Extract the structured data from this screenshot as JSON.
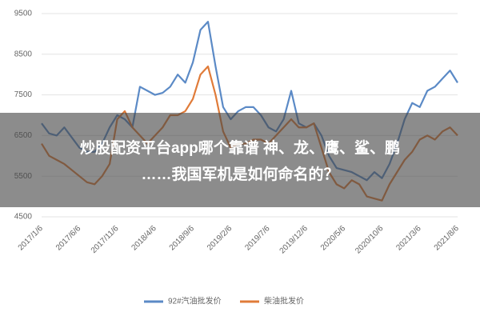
{
  "chart_data": {
    "type": "line",
    "annotations": [
      "炒股配资平台app哪个靠谱 神、龙、鹰、鲨、鹏",
      "……我国军机是如何命名的？"
    ],
    "categories": [
      "2017/1/6",
      null,
      null,
      null,
      null,
      "2017/6/6",
      null,
      null,
      null,
      null,
      "2017/11/6",
      null,
      null,
      null,
      null,
      "2018/4/6",
      null,
      null,
      null,
      null,
      "2018/9/6",
      null,
      null,
      null,
      null,
      "2019/2/6",
      null,
      null,
      null,
      null,
      "2019/7/6",
      null,
      null,
      null,
      null,
      "2019/12/6",
      null,
      null,
      null,
      null,
      "2020/5/6",
      null,
      null,
      null,
      null,
      "2020/10/6",
      null,
      null,
      null,
      null,
      "2021/3/6",
      null,
      null,
      null,
      null,
      "2021/8/6"
    ],
    "series": [
      {
        "name": "92#汽油批发价",
        "color": "#5b8ac6",
        "values": [
          6800,
          6550,
          6500,
          6700,
          6450,
          6200,
          6100,
          6100,
          6300,
          6700,
          7000,
          6900,
          6700,
          7700,
          7600,
          7500,
          7550,
          7700,
          8000,
          7800,
          8300,
          9100,
          9300,
          8200,
          7200,
          6900,
          7100,
          7200,
          7200,
          7000,
          6700,
          6600,
          6900,
          7600,
          6800,
          6700,
          6800,
          6500,
          6000,
          5700,
          5650,
          5600,
          5500,
          5400,
          5600,
          5450,
          5800,
          6300,
          6900,
          7300,
          7200,
          7600,
          7700,
          7900,
          8100,
          7800
        ]
      },
      {
        "name": "柴油批发价",
        "color": "#e07b39",
        "values": [
          6300,
          6000,
          5900,
          5800,
          5650,
          5500,
          5350,
          5300,
          5500,
          5800,
          6900,
          7100,
          6700,
          6500,
          6300,
          6500,
          6700,
          7000,
          7000,
          7100,
          7400,
          8000,
          8200,
          7500,
          6600,
          6200,
          6300,
          6300,
          6400,
          6400,
          6300,
          6500,
          6700,
          6900,
          6700,
          6700,
          6800,
          6200,
          5600,
          5300,
          5200,
          5400,
          5300,
          5000,
          4950,
          4900,
          5300,
          5600,
          5900,
          6100,
          6400,
          6500,
          6400,
          6600,
          6700,
          6500
        ]
      }
    ],
    "ylim": [
      4500,
      9500
    ],
    "yticks": [
      4500,
      5500,
      6500,
      7500,
      8500,
      9500
    ],
    "grid": true,
    "legend": "bottom"
  }
}
